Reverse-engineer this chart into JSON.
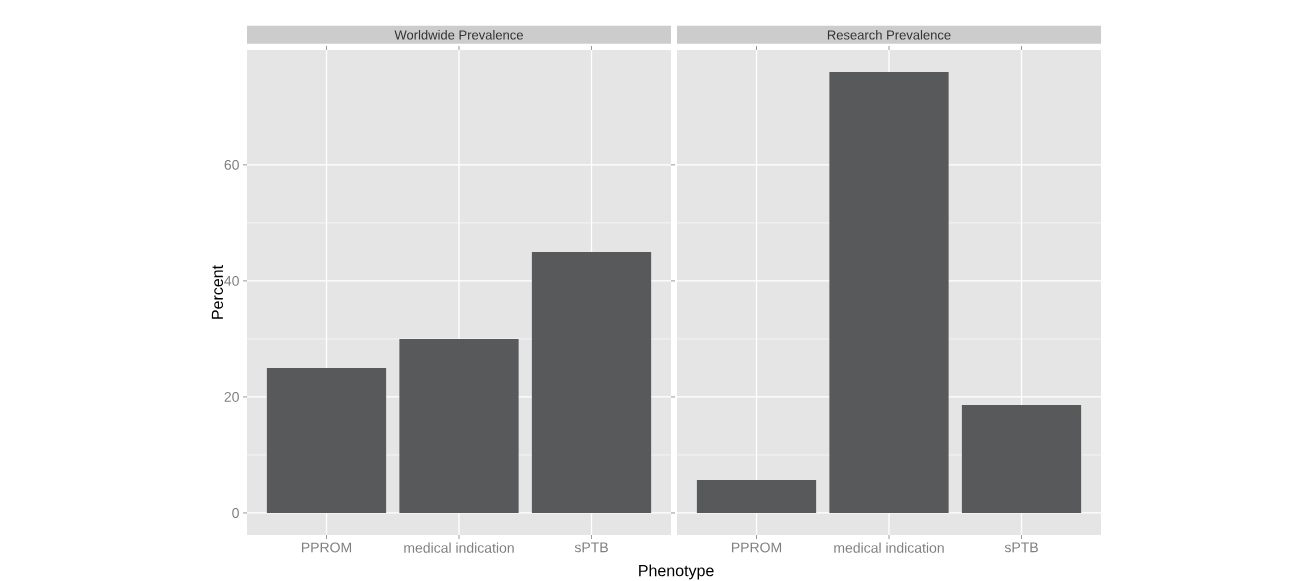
{
  "chart_data": [
    {
      "type": "bar",
      "title": "Worldwide Prevalence",
      "ylabel": "Percent",
      "xlabel": "Phenotype",
      "categories": [
        "PPROM",
        "medical indication",
        "sPTB"
      ],
      "values": [
        25,
        30,
        45
      ],
      "color": "#58595b",
      "ylim": [
        -3.8,
        79.8
      ],
      "yticks": [
        0,
        20,
        40,
        60
      ],
      "grid": true
    },
    {
      "type": "bar",
      "title": "Research Prevalence",
      "categories": [
        "PPROM",
        "medical indication",
        "sPTB"
      ],
      "values": [
        5.7,
        76,
        18.6
      ],
      "color": "#58595b",
      "ylim": [
        -3.8,
        79.8
      ],
      "yticks": [
        0,
        20,
        40,
        60
      ],
      "grid": true,
      "tick_labels": "x"
    }
  ]
}
